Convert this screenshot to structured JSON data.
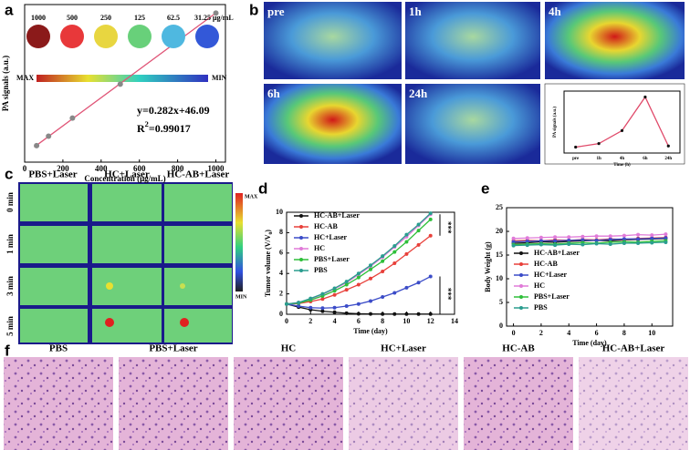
{
  "panel_labels": [
    "a",
    "b",
    "c",
    "d",
    "e",
    "f"
  ],
  "images": {
    "b": [
      "pre",
      "1h",
      "4h",
      "6h",
      "24h"
    ],
    "c": {
      "columns": [
        "PBS+Laser",
        "HC+Laser",
        "HC-AB+Laser"
      ],
      "rows": [
        "0 min",
        "1 min",
        "3 min",
        "5 min"
      ],
      "scale": [
        "MAX",
        "MIN"
      ]
    },
    "f": [
      "PBS",
      "PBS+Laser",
      "HC",
      "HC+Laser",
      "HC-AB",
      "HC-AB+Laser"
    ]
  },
  "chart_data": [
    {
      "type": "scatter",
      "xlabel": "Concentration (μg/mL)",
      "ylabel": "PA signals (a.u.)",
      "x": [
        62.5,
        125,
        250,
        500,
        1000
      ],
      "values": [
        63,
        82,
        118,
        186,
        328
      ],
      "color": "#888888",
      "fit_color": "#e05577",
      "fit": {
        "x": [
          50,
          1000
        ],
        "values": [
          60.19,
          328.09
        ]
      },
      "xlim": [
        0,
        1050
      ],
      "xticks": [
        0,
        200,
        400,
        600,
        800,
        1000
      ],
      "ylim": [
        30,
        345
      ],
      "annotations": [
        "y=0.282x+46.09",
        [
          "R",
          "2",
          "=0.99017"
        ]
      ],
      "sample_labels": [
        "1000",
        "500",
        "250",
        "125",
        "62.5",
        "31.25 μg/mL"
      ],
      "sample_colors": [
        "#8b1a1a",
        "#e8383a",
        "#e8d640",
        "#68d07a",
        "#4fb8e0",
        "#3358d8"
      ],
      "colorbar_labels": [
        "MAX",
        "MIN"
      ]
    },
    {
      "type": "line",
      "xlabel": "Time (h)",
      "ylabel": "PA signals (a.u.)",
      "categories": [
        "pre",
        "1h",
        "4h",
        "6h",
        "24h"
      ],
      "values": [
        0.1,
        0.16,
        0.38,
        0.95,
        0.12
      ],
      "color": "#e04a6a",
      "ylim": [
        0,
        1.05
      ]
    },
    {
      "type": "line",
      "xlabel": "Time (day)",
      "ylabel": [
        "Tumor volume (V/V",
        "0",
        ")"
      ],
      "x": [
        0,
        1,
        2,
        3,
        4,
        5,
        6,
        7,
        8,
        9,
        10,
        11,
        12
      ],
      "xlim": [
        0,
        14
      ],
      "xticks": [
        0,
        2,
        4,
        6,
        8,
        10,
        12,
        14
      ],
      "ylim": [
        0,
        10
      ],
      "yticks": [
        0,
        2,
        4,
        6,
        8,
        10
      ],
      "legend": "upper left",
      "annotations": [
        "***",
        "***"
      ],
      "series": [
        {
          "name": "HC-AB+Laser",
          "color": "#111111",
          "values": [
            1,
            0.7,
            0.45,
            0.3,
            0.2,
            0.1,
            0.05,
            0.03,
            0.02,
            0.02,
            0.02,
            0.02,
            0.02
          ]
        },
        {
          "name": "HC-AB",
          "color": "#e8403a",
          "values": [
            1,
            1.05,
            1.25,
            1.5,
            1.9,
            2.4,
            2.9,
            3.5,
            4.2,
            5,
            5.9,
            6.8,
            7.7
          ]
        },
        {
          "name": "HC+Laser",
          "color": "#3b4cc8",
          "values": [
            1,
            0.8,
            0.65,
            0.6,
            0.65,
            0.8,
            1,
            1.3,
            1.7,
            2.1,
            2.6,
            3.1,
            3.7
          ]
        },
        {
          "name": "HC",
          "color": "#e07ad8",
          "values": [
            1,
            1.15,
            1.5,
            1.95,
            2.5,
            3.1,
            3.9,
            4.7,
            5.6,
            6.6,
            7.6,
            8.7,
            9.8
          ]
        },
        {
          "name": "PBS+Laser",
          "color": "#2fbf3a",
          "values": [
            1,
            1.1,
            1.4,
            1.8,
            2.3,
            2.9,
            3.6,
            4.4,
            5.2,
            6.1,
            7.1,
            8.2,
            9.3
          ]
        },
        {
          "name": "PBS",
          "color": "#2a9d8f",
          "values": [
            1,
            1.15,
            1.55,
            2,
            2.55,
            3.2,
            4,
            4.8,
            5.7,
            6.7,
            7.8,
            8.8,
            9.9
          ]
        }
      ]
    },
    {
      "type": "line",
      "xlabel": "Time (day)",
      "ylabel": "Body Weight (g)",
      "x": [
        0,
        1,
        2,
        3,
        4,
        5,
        6,
        7,
        8,
        9,
        10,
        11
      ],
      "xlim": [
        -0.5,
        11.5
      ],
      "xticks": [
        0,
        2,
        4,
        6,
        8,
        10
      ],
      "ylim": [
        0,
        25
      ],
      "yticks": [
        0,
        5,
        10,
        15,
        20,
        25
      ],
      "legend": "lower left",
      "series": [
        {
          "name": "HC-AB+Laser",
          "color": "#111111",
          "values": [
            17.5,
            17.6,
            17.8,
            17.7,
            17.9,
            18,
            18.1,
            18,
            18.2,
            18.3,
            18.4,
            18.5
          ]
        },
        {
          "name": "HC-AB",
          "color": "#e8403a",
          "values": [
            18,
            18.1,
            18,
            18.2,
            18.1,
            18.3,
            18.2,
            18.4,
            18.3,
            18.5,
            18.6,
            18.7
          ]
        },
        {
          "name": "HC+Laser",
          "color": "#3b4cc8",
          "values": [
            17.8,
            17.9,
            18,
            18,
            18.1,
            18.2,
            18.1,
            18.3,
            18.4,
            18.4,
            18.5,
            18.6
          ]
        },
        {
          "name": "HC",
          "color": "#e07ad8",
          "values": [
            18.5,
            18.6,
            18.7,
            18.8,
            18.8,
            18.9,
            19,
            19,
            19.1,
            19.3,
            19.2,
            19.4
          ]
        },
        {
          "name": "PBS+Laser",
          "color": "#2fbf3a",
          "values": [
            17.2,
            17.3,
            17.4,
            17.3,
            17.5,
            17.6,
            17.5,
            17.7,
            17.8,
            17.7,
            17.9,
            18
          ]
        },
        {
          "name": "PBS",
          "color": "#2a9d8f",
          "values": [
            17,
            17.1,
            17.2,
            17.1,
            17.3,
            17.2,
            17.4,
            17.3,
            17.5,
            17.5,
            17.6,
            17.7
          ]
        }
      ]
    }
  ]
}
